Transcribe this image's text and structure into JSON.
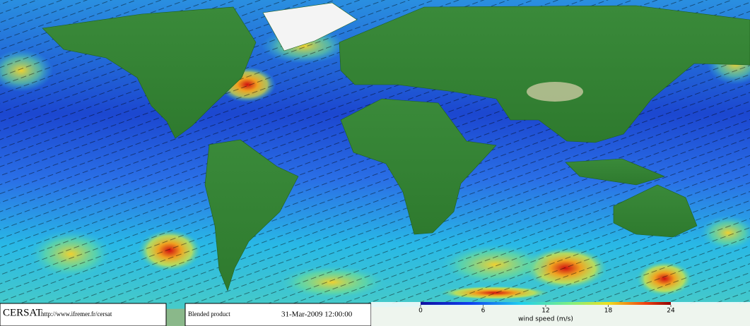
{
  "footer": {
    "brand": "CERSAT",
    "url": "http://www.ifremer.fr/cersat",
    "product": "Blended product",
    "date": "31-Mar-2009 12:00:00"
  },
  "colorbar": {
    "label": "wind speed (m/s)",
    "ticks": [
      0,
      6,
      12,
      18,
      24
    ]
  }
}
